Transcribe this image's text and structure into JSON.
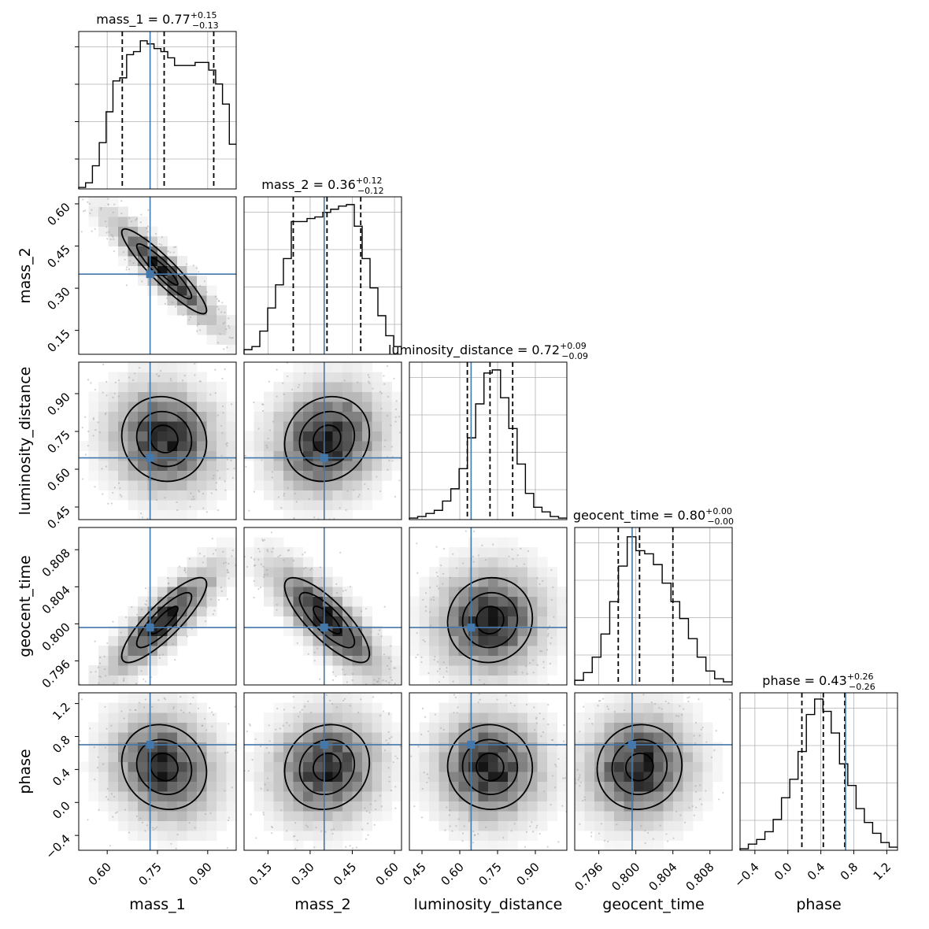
{
  "chart_data": {
    "type": "corner",
    "parameters": [
      "mass_1",
      "mass_2",
      "luminosity_distance",
      "geocent_time",
      "phase"
    ],
    "truth_color": "#4477aa",
    "titles": [
      {
        "param": "mass_1",
        "prefix": "mass_1 = ",
        "median": "0.77",
        "plus": "+0.15",
        "minus": "−0.13"
      },
      {
        "param": "mass_2",
        "prefix": "mass_2 = ",
        "median": "0.36",
        "plus": "+0.12",
        "minus": "−0.12"
      },
      {
        "param": "luminosity_distance",
        "prefix": "luminosity_distance = ",
        "median": "0.72",
        "plus": "+0.09",
        "minus": "−0.09"
      },
      {
        "param": "geocent_time",
        "prefix": "geocent_time = ",
        "median": "0.80",
        "plus": "+0.00",
        "minus": "−0.00"
      },
      {
        "param": "phase",
        "prefix": "phase = ",
        "median": "0.43",
        "plus": "+0.26",
        "minus": "−0.26"
      }
    ],
    "axes": [
      {
        "param": "mass_1",
        "range": [
          0.515,
          0.985
        ],
        "ticks": [
          0.6,
          0.75,
          0.9
        ],
        "tick_labels": [
          "0.60",
          "0.75",
          "0.90"
        ],
        "truth": 0.728,
        "quantiles": [
          0.645,
          0.77,
          0.918
        ]
      },
      {
        "param": "mass_2",
        "range": [
          0.065,
          0.625
        ],
        "ticks": [
          0.15,
          0.3,
          0.45,
          0.6
        ],
        "tick_labels": [
          "0.15",
          "0.30",
          "0.45",
          "0.60"
        ],
        "truth": 0.35,
        "quantiles": [
          0.24,
          0.36,
          0.48
        ]
      },
      {
        "param": "luminosity_distance",
        "range": [
          0.4,
          1.025
        ],
        "ticks": [
          0.45,
          0.6,
          0.75,
          0.9
        ],
        "tick_labels": [
          "0.45",
          "0.60",
          "0.75",
          "0.90"
        ],
        "truth": 0.645,
        "quantiles": [
          0.63,
          0.72,
          0.81
        ]
      },
      {
        "param": "geocent_time",
        "range": [
          0.7934,
          0.8104
        ],
        "ticks": [
          0.796,
          0.8,
          0.804,
          0.808
        ],
        "tick_labels": [
          "0.796",
          "0.800",
          "0.804",
          "0.808"
        ],
        "truth": 0.7996,
        "quantiles": [
          0.7981,
          0.8004,
          0.804
        ]
      },
      {
        "param": "phase",
        "range": [
          -0.58,
          1.33
        ],
        "ticks": [
          -0.4,
          0.0,
          0.4,
          0.8,
          1.2
        ],
        "tick_labels": [
          "−0.4",
          "0.0",
          "0.4",
          "0.8",
          "1.2"
        ],
        "truth": 0.7,
        "quantiles": [
          0.17,
          0.43,
          0.69
        ]
      }
    ],
    "histograms": [
      [
        0.01,
        0.04,
        0.15,
        0.3,
        0.5,
        0.7,
        0.72,
        0.87,
        0.89,
        0.96,
        0.94,
        0.91,
        0.89,
        0.85,
        0.8,
        0.8,
        0.8,
        0.82,
        0.82,
        0.77,
        0.68,
        0.55,
        0.29
      ],
      [
        0.03,
        0.05,
        0.15,
        0.3,
        0.45,
        0.62,
        0.86,
        0.86,
        0.88,
        0.89,
        0.92,
        0.94,
        0.96,
        0.97,
        0.83,
        0.62,
        0.43,
        0.25,
        0.12,
        0.05
      ],
      [
        0.01,
        0.02,
        0.04,
        0.06,
        0.12,
        0.2,
        0.33,
        0.53,
        0.75,
        0.95,
        0.97,
        0.79,
        0.59,
        0.36,
        0.17,
        0.08,
        0.05,
        0.02,
        0.01
      ],
      [
        0.03,
        0.08,
        0.18,
        0.33,
        0.54,
        0.77,
        0.96,
        0.87,
        0.85,
        0.78,
        0.66,
        0.54,
        0.43,
        0.3,
        0.18,
        0.09,
        0.04,
        0.02
      ],
      [
        0.01,
        0.04,
        0.07,
        0.12,
        0.2,
        0.34,
        0.46,
        0.64,
        0.88,
        0.98,
        0.9,
        0.76,
        0.56,
        0.42,
        0.27,
        0.18,
        0.11,
        0.05,
        0.02
      ]
    ],
    "correlations": {
      "1-0": -0.92,
      "2-0": -0.08,
      "2-1": 0.12,
      "3-0": 0.85,
      "3-1": -0.8,
      "3-2": 0.05,
      "4-0": -0.12,
      "4-1": 0.1,
      "4-2": -0.02,
      "4-3": 0.05
    },
    "grid": true,
    "contour_levels": 3
  }
}
